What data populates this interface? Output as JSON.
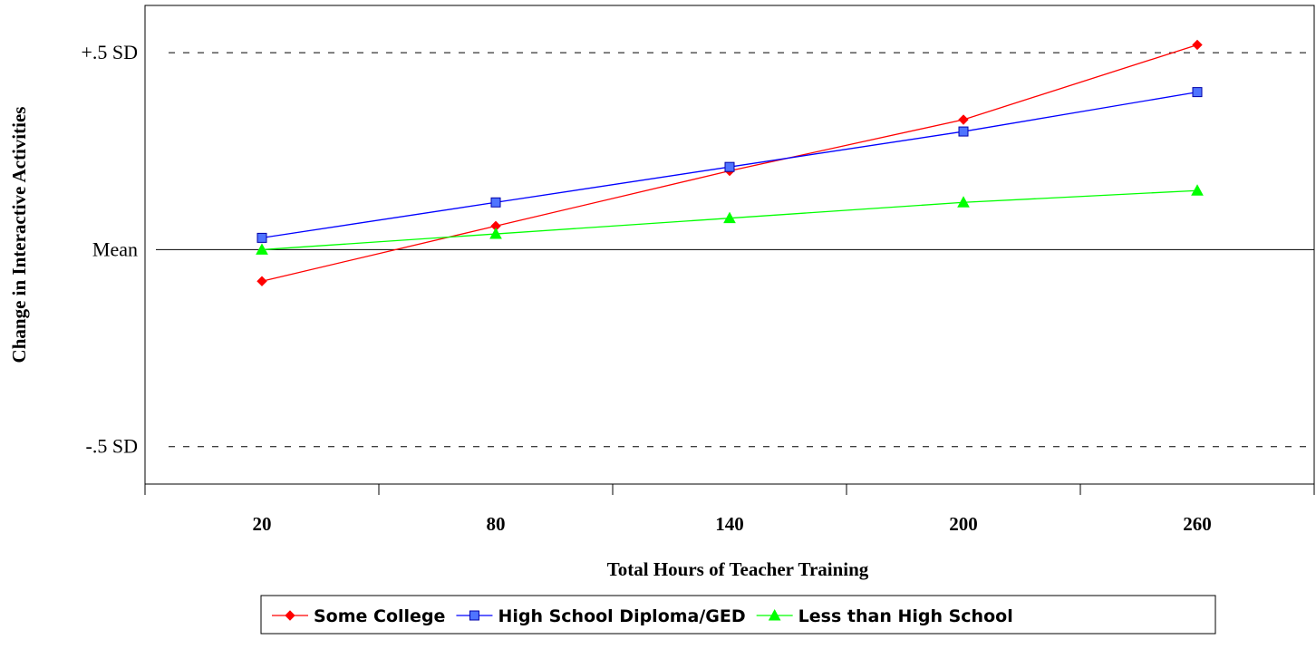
{
  "chart_data": {
    "type": "line",
    "title": "",
    "xlabel": "Total Hours of Teacher Training",
    "ylabel": "Change in Interactive Activities",
    "categories": [
      "20",
      "80",
      "140",
      "200",
      "260"
    ],
    "x": [
      20,
      80,
      140,
      200,
      260
    ],
    "yticks": [
      {
        "label": "+.5 SD",
        "value": 0.5
      },
      {
        "label": "Mean",
        "value": 0
      },
      {
        "label": "-.5 SD",
        "value": -0.5
      }
    ],
    "ylim": [
      -0.595,
      0.62
    ],
    "grid": "dashed reference lines at +.5 SD and -.5 SD, solid line at Mean",
    "legend_position": "bottom",
    "series": [
      {
        "name": "Some College",
        "color": "#ff0000",
        "marker": "diamond",
        "values": [
          -0.08,
          0.06,
          0.2,
          0.33,
          0.52
        ]
      },
      {
        "name": "High School Diploma/GED",
        "color": "#0000ff",
        "marker": "square",
        "values": [
          0.03,
          0.12,
          0.21,
          0.3,
          0.4
        ]
      },
      {
        "name": "Less than High School",
        "color": "#00ff00",
        "marker": "triangle",
        "values": [
          0.0,
          0.04,
          0.08,
          0.12,
          0.15
        ]
      }
    ]
  }
}
